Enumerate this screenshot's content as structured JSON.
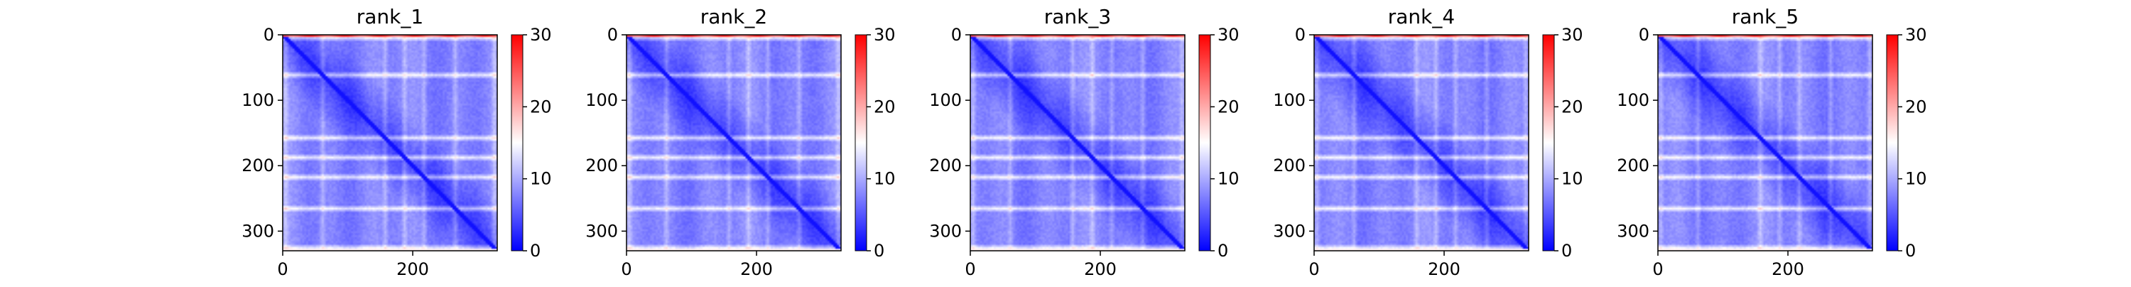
{
  "chart_data": {
    "type": "heatmap",
    "colormap": {
      "name": "bwr",
      "low": "#0000ff",
      "mid": "#ffffff",
      "high": "#ff0000",
      "vmin": 0,
      "vmax": 30,
      "ticks": [
        0,
        10,
        20,
        30
      ]
    },
    "matrix_size": 330,
    "x_ticks": [
      0,
      200
    ],
    "y_ticks": [
      0,
      100,
      200,
      300
    ],
    "bright_rows": [
      4,
      60,
      155,
      185,
      215,
      265,
      325
    ],
    "panels": [
      {
        "title": "rank_1"
      },
      {
        "title": "rank_2"
      },
      {
        "title": "rank_3"
      },
      {
        "title": "rank_4"
      },
      {
        "title": "rank_5"
      }
    ]
  }
}
